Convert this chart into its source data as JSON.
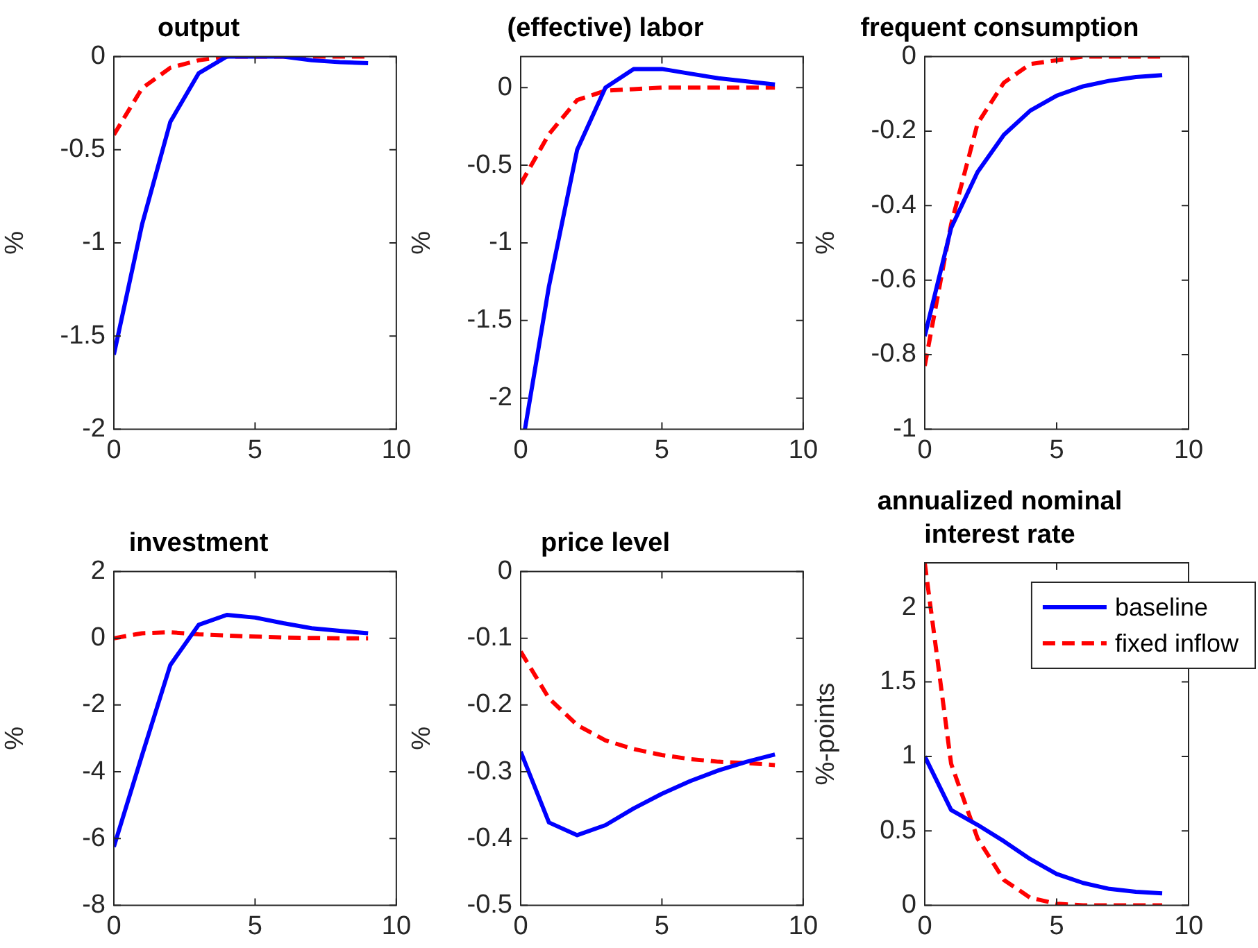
{
  "chart_data": [
    {
      "type": "line",
      "title": "output",
      "ylabel": "%",
      "x": [
        0,
        1,
        2,
        3,
        4,
        5,
        6,
        7,
        8,
        9
      ],
      "xlim": [
        0,
        10
      ],
      "xticks": [
        0,
        5,
        10
      ],
      "ylim": [
        -2,
        0
      ],
      "yticks": [
        -2,
        -1.5,
        -1,
        -0.5,
        0
      ],
      "grid": false,
      "legend": false,
      "series": [
        {
          "color": "#0000ff",
          "line_style": "solid",
          "values": [
            -1.6,
            -0.9,
            -0.35,
            -0.09,
            0,
            0,
            0,
            -0.02,
            -0.03,
            -0.035
          ]
        },
        {
          "color": "#ff0000",
          "line_style": "dashed",
          "values": [
            -0.42,
            -0.17,
            -0.06,
            -0.02,
            0,
            0,
            0,
            0,
            0,
            0
          ]
        }
      ]
    },
    {
      "type": "line",
      "title": "(effective) labor",
      "ylabel": "%",
      "x": [
        0,
        1,
        2,
        3,
        4,
        5,
        6,
        7,
        8,
        9
      ],
      "xlim": [
        0,
        10
      ],
      "xticks": [
        0,
        5,
        10
      ],
      "ylim": [
        -2.2,
        0.2
      ],
      "yticks": [
        -2,
        -1.5,
        -1,
        -0.5,
        0
      ],
      "grid": false,
      "legend": false,
      "series": [
        {
          "color": "#0000ff",
          "line_style": "solid",
          "x": [
            0.15,
            1,
            2,
            3,
            4,
            5,
            6,
            7,
            8,
            9
          ],
          "values": [
            -2.2,
            -1.28,
            -0.4,
            0,
            0.12,
            0.12,
            0.09,
            0.06,
            0.04,
            0.02
          ]
        },
        {
          "color": "#ff0000",
          "line_style": "dashed",
          "values": [
            -0.62,
            -0.3,
            -0.08,
            -0.02,
            -0.01,
            0,
            0,
            0,
            0,
            0
          ]
        }
      ]
    },
    {
      "type": "line",
      "title": "frequent consumption",
      "ylabel": "%",
      "x": [
        0,
        1,
        2,
        3,
        4,
        5,
        6,
        7,
        8,
        9
      ],
      "xlim": [
        0,
        10
      ],
      "xticks": [
        0,
        5,
        10
      ],
      "ylim": [
        -1,
        0
      ],
      "yticks": [
        -1,
        -0.8,
        -0.6,
        -0.4,
        -0.2,
        0
      ],
      "grid": false,
      "legend": false,
      "series": [
        {
          "color": "#0000ff",
          "line_style": "solid",
          "values": [
            -0.75,
            -0.46,
            -0.31,
            -0.21,
            -0.145,
            -0.105,
            -0.08,
            -0.065,
            -0.055,
            -0.05
          ]
        },
        {
          "color": "#ff0000",
          "line_style": "dashed",
          "values": [
            -0.83,
            -0.45,
            -0.18,
            -0.07,
            -0.02,
            -0.01,
            0,
            0,
            0,
            0
          ]
        }
      ]
    },
    {
      "type": "line",
      "title": "investment",
      "ylabel": "%",
      "x": [
        0,
        1,
        2,
        3,
        4,
        5,
        6,
        7,
        8,
        9
      ],
      "xlim": [
        0,
        10
      ],
      "xticks": [
        0,
        5,
        10
      ],
      "ylim": [
        -8,
        2
      ],
      "yticks": [
        -8,
        -6,
        -4,
        -2,
        0,
        2
      ],
      "grid": false,
      "legend": false,
      "series": [
        {
          "color": "#0000ff",
          "line_style": "solid",
          "values": [
            -6.25,
            -3.5,
            -0.8,
            0.4,
            0.7,
            0.62,
            0.45,
            0.3,
            0.22,
            0.15
          ]
        },
        {
          "color": "#ff0000",
          "line_style": "dashed",
          "values": [
            0,
            0.15,
            0.18,
            0.12,
            0.08,
            0.05,
            0.02,
            0.01,
            0,
            0
          ]
        }
      ]
    },
    {
      "type": "line",
      "title": "price level",
      "ylabel": "%",
      "x": [
        0,
        1,
        2,
        3,
        4,
        5,
        6,
        7,
        8,
        9
      ],
      "xlim": [
        0,
        10
      ],
      "xticks": [
        0,
        5,
        10
      ],
      "ylim": [
        -0.5,
        0
      ],
      "yticks": [
        -0.5,
        -0.4,
        -0.3,
        -0.2,
        -0.1,
        0
      ],
      "grid": false,
      "legend": false,
      "series": [
        {
          "color": "#0000ff",
          "line_style": "solid",
          "values": [
            -0.27,
            -0.376,
            -0.395,
            -0.38,
            -0.355,
            -0.333,
            -0.314,
            -0.298,
            -0.285,
            -0.274
          ]
        },
        {
          "color": "#ff0000",
          "line_style": "dashed",
          "values": [
            -0.12,
            -0.19,
            -0.23,
            -0.253,
            -0.266,
            -0.275,
            -0.281,
            -0.285,
            -0.287,
            -0.29
          ]
        }
      ]
    },
    {
      "type": "line",
      "title": "annualized nominal\ninterest rate",
      "ylabel": "%-points",
      "x": [
        0,
        1,
        2,
        3,
        4,
        5,
        6,
        7,
        8,
        9
      ],
      "xlim": [
        0,
        10
      ],
      "xticks": [
        0,
        5,
        10
      ],
      "ylim": [
        0,
        2.3
      ],
      "yticks": [
        0,
        0.5,
        1,
        1.5,
        2
      ],
      "grid": false,
      "legend": "top right",
      "series": [
        {
          "name": "baseline",
          "color": "#0000ff",
          "line_style": "solid",
          "values": [
            1,
            0.64,
            0.54,
            0.43,
            0.31,
            0.21,
            0.15,
            0.11,
            0.09,
            0.08
          ]
        },
        {
          "name": "fixed inflow",
          "color": "#ff0000",
          "line_style": "dashed",
          "values": [
            2.3,
            0.95,
            0.45,
            0.17,
            0.05,
            0.01,
            0,
            0,
            0,
            0
          ]
        }
      ]
    }
  ]
}
